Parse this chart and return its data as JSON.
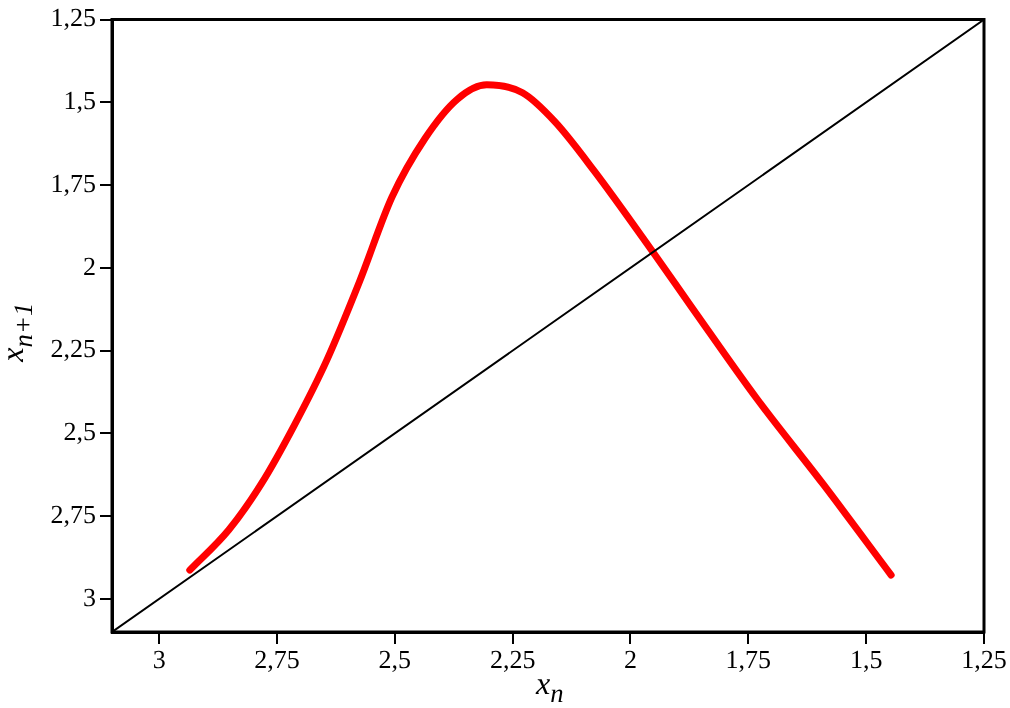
{
  "chart_data": {
    "type": "line",
    "xlabel": "x$_{n}$",
    "ylabel": "x$_{n+1}$",
    "xlim": [
      3.1,
      1.25
    ],
    "ylim": [
      3.1,
      1.25
    ],
    "xticks": [
      3,
      {
        "value": 2.75,
        "label": "2,75"
      },
      {
        "value": 2.5,
        "label": "2,5"
      },
      {
        "value": 2.25,
        "label": "2,25"
      },
      2,
      {
        "value": 1.75,
        "label": "1,75"
      },
      {
        "value": 1.5,
        "label": "1,5"
      },
      {
        "value": 1.25,
        "label": "1,25"
      }
    ],
    "yticks": [
      {
        "value": 1.25,
        "label": "1,25"
      },
      {
        "value": 1.5,
        "label": "1,5"
      },
      {
        "value": 1.75,
        "label": "1,75"
      },
      2,
      {
        "value": 2.25,
        "label": "2,25"
      },
      {
        "value": 2.5,
        "label": "2,5"
      },
      {
        "value": 2.75,
        "label": "2,75"
      },
      3
    ],
    "grid": false,
    "legend": false,
    "marker": "none",
    "line_style": "solid",
    "series": [
      {
        "color": "#000000",
        "x": [
          3.1,
          1.25
        ],
        "values": [
          3.1,
          1.25
        ]
      },
      {
        "color": "#ff0000",
        "x": [
          2.935,
          2.852,
          2.783,
          2.713,
          2.644,
          2.575,
          2.506,
          2.436,
          2.367,
          2.305,
          2.229,
          2.16,
          2.077,
          1.952,
          1.869,
          1.731,
          1.592,
          1.447
        ],
        "values": [
          2.913,
          2.791,
          2.652,
          2.475,
          2.278,
          2.042,
          1.786,
          1.609,
          1.49,
          1.447,
          1.471,
          1.559,
          1.707,
          1.953,
          2.121,
          2.397,
          2.652,
          2.928
        ]
      }
    ]
  }
}
